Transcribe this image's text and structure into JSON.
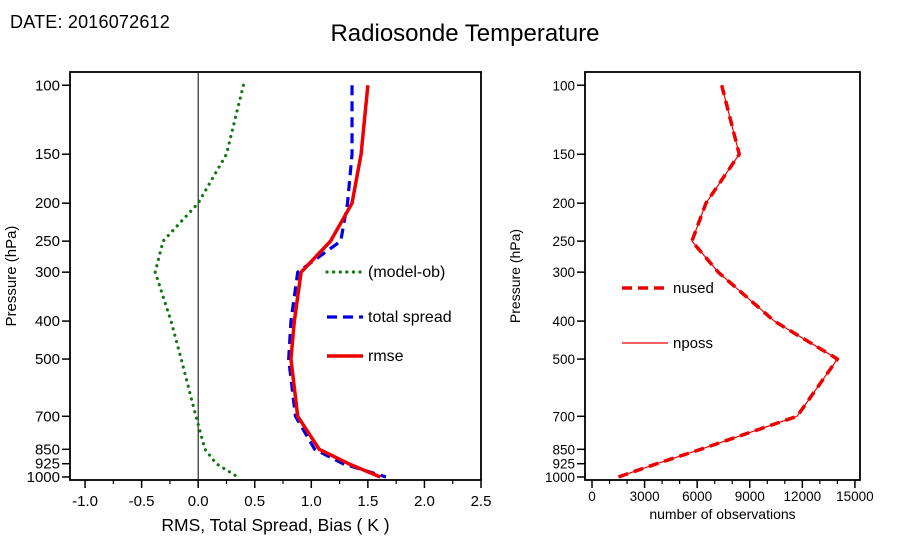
{
  "header": {
    "date": "DATE: 2016072612",
    "title": "Radiosonde Temperature"
  },
  "chart_data": [
    {
      "id": "stats",
      "type": "line",
      "xlabel": "RMS, Total Spread, Bias ( K )",
      "ylabel": "Pressure (hPa)",
      "xlim": [
        -1.133,
        2.5
      ],
      "xticks": [
        -1.0,
        -0.5,
        0.0,
        0.5,
        1.0,
        1.5,
        2.0,
        2.5
      ],
      "xtick_labels": [
        "-1.0",
        "-0.5",
        "0.0",
        "0.5",
        "1.0",
        "1.5",
        "2.0",
        "2.5"
      ],
      "x_minor_step": 0.25,
      "yscale": "log",
      "ylim": [
        92.5,
        1018
      ],
      "yticks": [
        100,
        150,
        200,
        250,
        300,
        400,
        500,
        700,
        850,
        925,
        1000
      ],
      "ytick_labels": [
        "100",
        "150",
        "200",
        "250",
        "300",
        "400",
        "500",
        "700",
        "850",
        "925",
        "1000"
      ],
      "zero_line": true,
      "pressures": [
        100,
        150,
        200,
        250,
        300,
        400,
        500,
        700,
        850,
        925,
        1000
      ],
      "series": [
        {
          "name": "(model-ob)",
          "color": "#137813",
          "style": "dotted",
          "width": 3.2,
          "values": [
            0.4,
            0.25,
            0.0,
            -0.31,
            -0.38,
            -0.24,
            -0.15,
            -0.02,
            0.06,
            0.16,
            0.35
          ]
        },
        {
          "name": "total spread",
          "color": "#0000e6",
          "style": "dashed",
          "width": 3.2,
          "values": [
            1.36,
            1.36,
            1.32,
            1.26,
            0.88,
            0.82,
            0.8,
            0.86,
            1.03,
            1.28,
            1.66
          ]
        },
        {
          "name": "rmse",
          "color": "#ef0000",
          "style": "solid",
          "width": 3.5,
          "values": [
            1.5,
            1.44,
            1.36,
            1.17,
            0.91,
            0.85,
            0.82,
            0.88,
            1.07,
            1.33,
            1.61
          ]
        }
      ],
      "legend": {
        "entries": [
          "(model-ob)",
          "total spread",
          "rmse"
        ],
        "position": "inside-right"
      }
    },
    {
      "id": "obs",
      "type": "line",
      "xlabel": "number of observations",
      "ylabel": "Pressure (hPa)",
      "xlim": [
        -400,
        15290
      ],
      "xticks": [
        0,
        3000,
        6000,
        9000,
        12000,
        15000
      ],
      "xtick_labels": [
        "0",
        "3000",
        "6000",
        "9000",
        "12000",
        "15000"
      ],
      "x_minor_step": 1000,
      "yscale": "log",
      "ylim": [
        92.5,
        1018
      ],
      "yticks": [
        100,
        150,
        200,
        250,
        300,
        400,
        500,
        700,
        850,
        925,
        1000
      ],
      "ytick_labels": [
        "100",
        "150",
        "200",
        "250",
        "300",
        "400",
        "500",
        "700",
        "850",
        "925",
        "1000"
      ],
      "zero_line": false,
      "pressures": [
        100,
        150,
        200,
        250,
        300,
        400,
        500,
        700,
        850,
        925,
        1000
      ],
      "series": [
        {
          "name": "nposs",
          "color": "#ef0000",
          "style": "solid",
          "width": 1.2,
          "values": [
            7400,
            8400,
            6500,
            5700,
            7200,
            10400,
            14000,
            11700,
            6200,
            3700,
            1500
          ]
        },
        {
          "name": "nused",
          "color": "#ef0000",
          "style": "dashed",
          "width": 3.5,
          "values": [
            7400,
            8400,
            6500,
            5700,
            7200,
            10400,
            14000,
            11700,
            6200,
            3700,
            1500
          ]
        }
      ],
      "legend": {
        "entries": [
          "nused",
          "nposs"
        ],
        "position": "inside-left"
      }
    }
  ]
}
